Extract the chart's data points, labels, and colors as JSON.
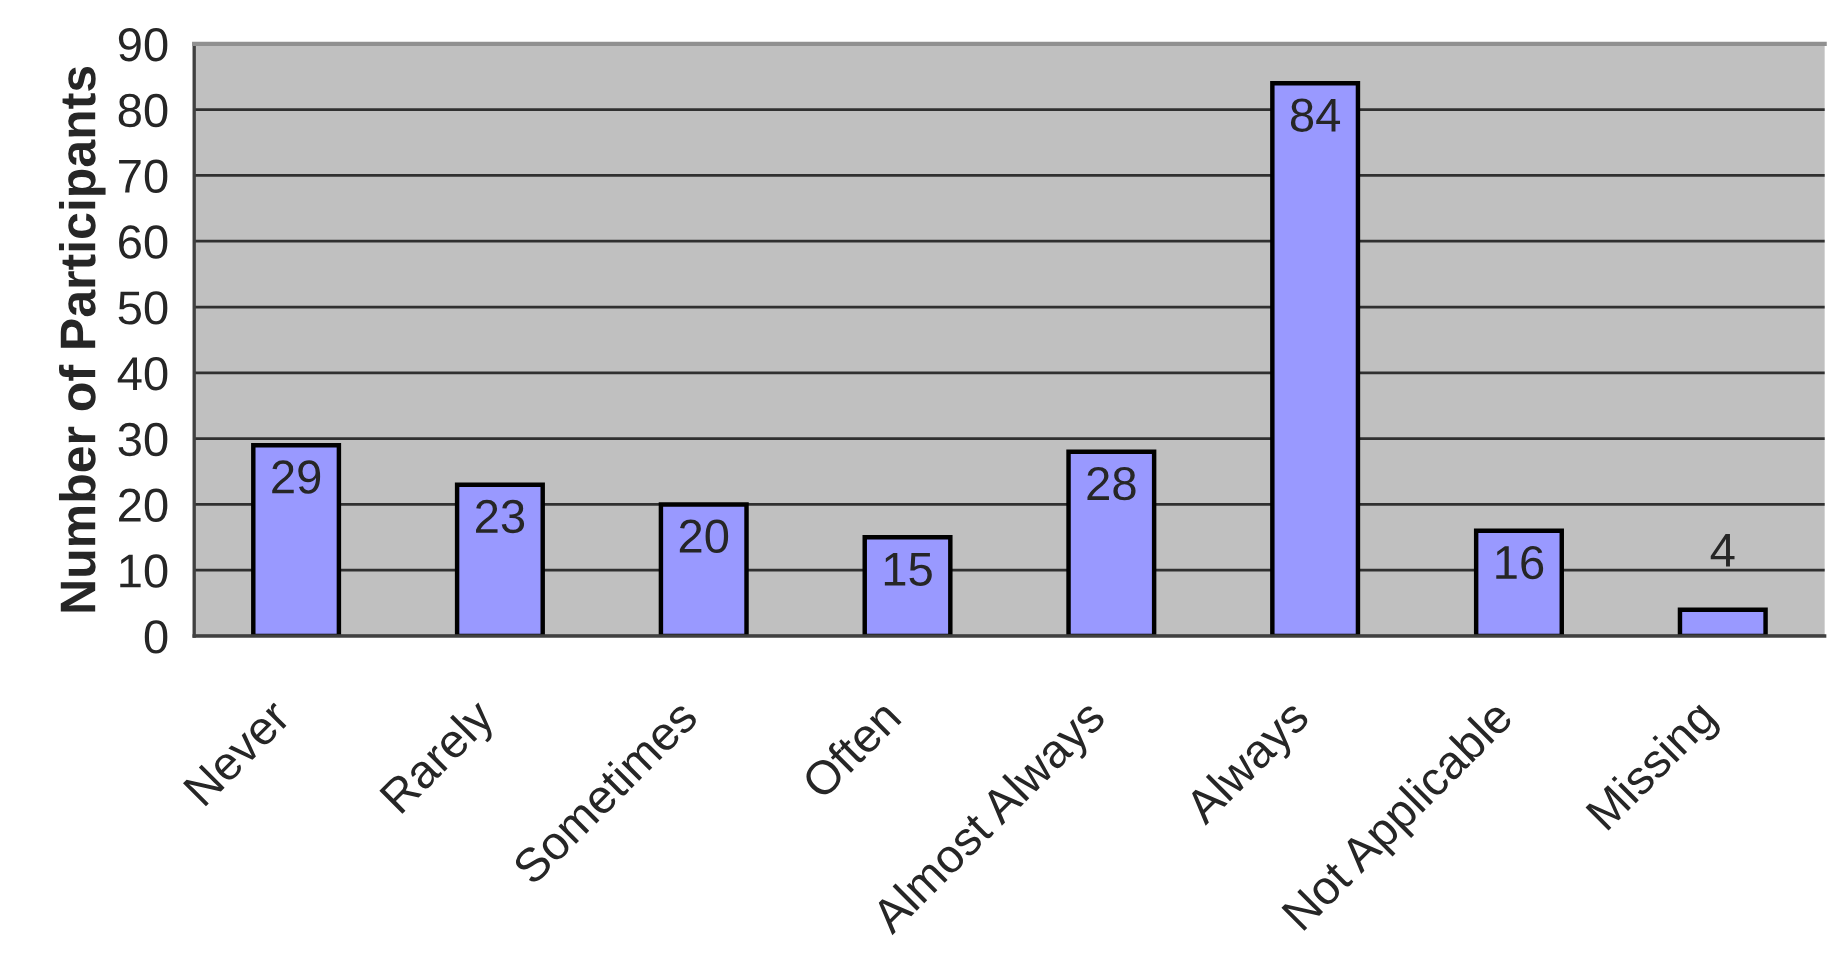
{
  "chart_data": {
    "type": "bar",
    "ylabel": "Number of Participants",
    "categories": [
      "Never",
      "Rarely",
      "Sometimes",
      "Often",
      "Almost Always",
      "Always",
      "Not Applicable",
      "Missing"
    ],
    "values": [
      29,
      23,
      20,
      15,
      28,
      84,
      16,
      4
    ],
    "color": "#9999ff",
    "ylim": [
      0,
      90
    ],
    "yticks": [
      0,
      10,
      20,
      30,
      40,
      50,
      60,
      70,
      80,
      90
    ],
    "grid": "y",
    "data_labels": true
  }
}
